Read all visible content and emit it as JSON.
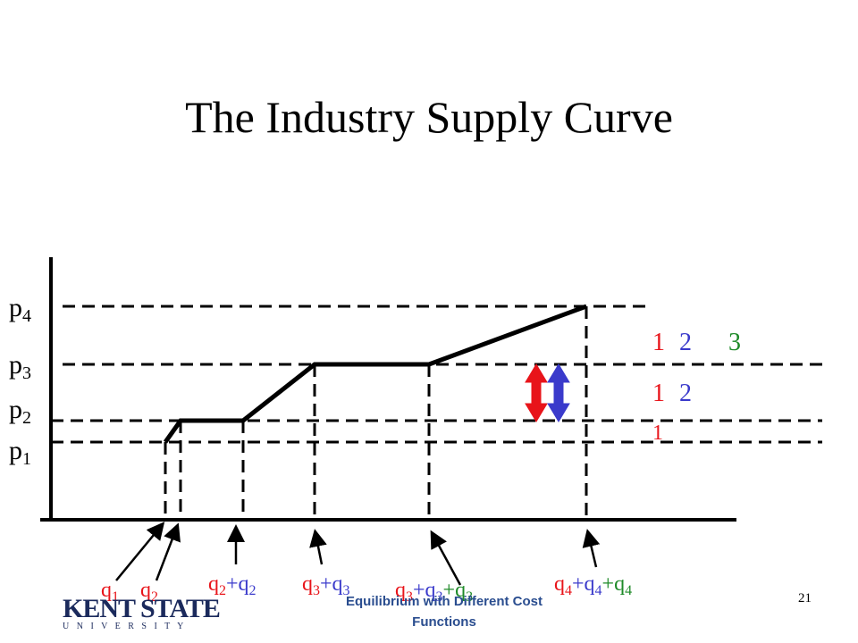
{
  "title": "The Industry Supply Curve",
  "y_labels": [
    {
      "base": "p",
      "sub": "4"
    },
    {
      "base": "p",
      "sub": "3"
    },
    {
      "base": "p",
      "sub": "2"
    },
    {
      "base": "p",
      "sub": "1"
    }
  ],
  "x_labels": [
    {
      "terms": [
        {
          "base": "q",
          "sub": "1",
          "color": "#e8141a"
        }
      ]
    },
    {
      "terms": [
        {
          "base": "q",
          "sub": "2",
          "color": "#e8141a"
        }
      ]
    },
    {
      "terms": [
        {
          "base": "q",
          "sub": "2",
          "color": "#e8141a"
        },
        {
          "plus": "+",
          "base": "q",
          "sub": "2",
          "color": "#3a3acb"
        }
      ]
    },
    {
      "terms": [
        {
          "base": "q",
          "sub": "3",
          "color": "#e8141a"
        },
        {
          "plus": "+",
          "base": "q",
          "sub": "3",
          "color": "#3a3acb"
        }
      ]
    },
    {
      "terms": [
        {
          "base": "q",
          "sub": "3",
          "color": "#e8141a"
        },
        {
          "plus": "+",
          "base": "q",
          "sub": "3",
          "color": "#3a3acb"
        },
        {
          "plus": "+",
          "base": "q",
          "sub": "3",
          "color": "#1e8a28"
        }
      ]
    },
    {
      "terms": [
        {
          "base": "q",
          "sub": "4",
          "color": "#e8141a"
        },
        {
          "plus": "+",
          "base": "q",
          "sub": "4",
          "color": "#3a3acb"
        },
        {
          "plus": "+",
          "base": "q",
          "sub": "4",
          "color": "#1e8a28"
        }
      ]
    }
  ],
  "firm_labels": [
    [
      "1",
      "2",
      "3"
    ],
    [
      "1",
      "2"
    ],
    [
      "1"
    ]
  ],
  "footer": {
    "text": "Equilibrium with Different Cost Functions",
    "page": "21"
  },
  "logo": {
    "name": "KENT STATE",
    "sub": "U N I V E R S I T Y"
  }
}
